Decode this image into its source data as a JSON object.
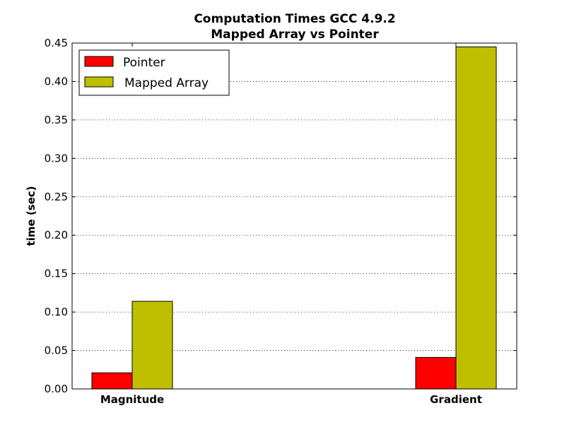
{
  "chart_data": {
    "type": "bar",
    "title": "Computation Times GCC 4.9.2",
    "subtitle": "Mapped Array vs Pointer",
    "xlabel": "",
    "ylabel": "time (sec)",
    "categories": [
      "Magnitude",
      "Gradient"
    ],
    "series": [
      {
        "name": "Pointer",
        "color": "#ff0000",
        "values": [
          0.021,
          0.041
        ]
      },
      {
        "name": "Mapped Array",
        "color": "#bfbf00",
        "values": [
          0.114,
          0.445
        ]
      }
    ],
    "ylim": [
      0,
      0.45
    ],
    "yticks": [
      "0.00",
      "0.05",
      "0.10",
      "0.15",
      "0.20",
      "0.25",
      "0.30",
      "0.35",
      "0.40",
      "0.45"
    ],
    "grid": "y-dotted",
    "legend_position": "top-left"
  }
}
